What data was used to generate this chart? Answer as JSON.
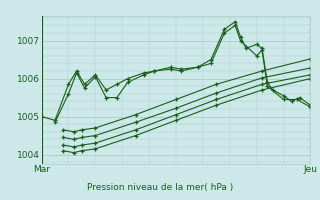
{
  "bg_color": "#cce8e8",
  "plot_bg_color": "#cce8e8",
  "grid_color": "#aacccc",
  "line_color": "#1a5c1a",
  "marker_color": "#1a5c1a",
  "title": "Pression niveau de la mer( hPa )",
  "xlabel_Mar": "Mar",
  "xlabel_Jeu": "Jeu",
  "ylim": [
    1003.75,
    1007.65
  ],
  "yticks": [
    1004,
    1005,
    1006,
    1007
  ],
  "series": [
    [
      0.0,
      1005.0,
      0.05,
      1004.9,
      0.1,
      1005.85,
      0.13,
      1006.2,
      0.16,
      1005.85,
      0.2,
      1006.1,
      0.24,
      1005.7,
      0.28,
      1005.85,
      0.32,
      1006.0,
      0.38,
      1006.15,
      0.42,
      1006.2,
      0.48,
      1006.3,
      0.52,
      1006.25,
      0.58,
      1006.3,
      0.63,
      1006.5,
      0.68,
      1007.3,
      0.72,
      1007.5,
      0.74,
      1007.1,
      0.76,
      1006.8,
      0.8,
      1006.9,
      0.82,
      1006.8,
      0.84,
      1005.9,
      0.86,
      1005.7,
      0.9,
      1005.55,
      0.93,
      1005.4,
      0.96,
      1005.5,
      1.0,
      1005.3
    ],
    [
      0.05,
      1004.85,
      0.1,
      1005.6,
      0.13,
      1006.15,
      0.16,
      1005.75,
      0.2,
      1006.05,
      0.24,
      1005.5,
      0.28,
      1005.5,
      0.32,
      1005.9,
      0.38,
      1006.1,
      0.42,
      1006.2,
      0.48,
      1006.25,
      0.52,
      1006.2,
      0.58,
      1006.3,
      0.63,
      1006.4,
      0.68,
      1007.2,
      0.72,
      1007.4,
      0.74,
      1007.0,
      0.8,
      1006.6,
      0.82,
      1006.75,
      0.84,
      1005.8,
      0.9,
      1005.45,
      0.95,
      1005.45,
      1.0,
      1005.25
    ],
    [
      0.08,
      1004.1,
      0.12,
      1004.05,
      0.15,
      1004.1,
      0.2,
      1004.15,
      0.35,
      1004.5,
      0.5,
      1004.9,
      0.65,
      1005.3,
      0.82,
      1005.7,
      1.0,
      1006.0
    ],
    [
      0.08,
      1004.25,
      0.12,
      1004.2,
      0.15,
      1004.25,
      0.2,
      1004.3,
      0.35,
      1004.65,
      0.5,
      1005.05,
      0.65,
      1005.45,
      0.82,
      1005.85,
      1.0,
      1006.1
    ],
    [
      0.08,
      1004.45,
      0.12,
      1004.4,
      0.15,
      1004.45,
      0.2,
      1004.5,
      0.35,
      1004.85,
      0.5,
      1005.22,
      0.65,
      1005.62,
      0.82,
      1006.02,
      1.0,
      1006.28
    ],
    [
      0.08,
      1004.65,
      0.12,
      1004.6,
      0.15,
      1004.65,
      0.2,
      1004.7,
      0.35,
      1005.05,
      0.5,
      1005.45,
      0.65,
      1005.85,
      0.82,
      1006.2,
      1.0,
      1006.52
    ]
  ]
}
